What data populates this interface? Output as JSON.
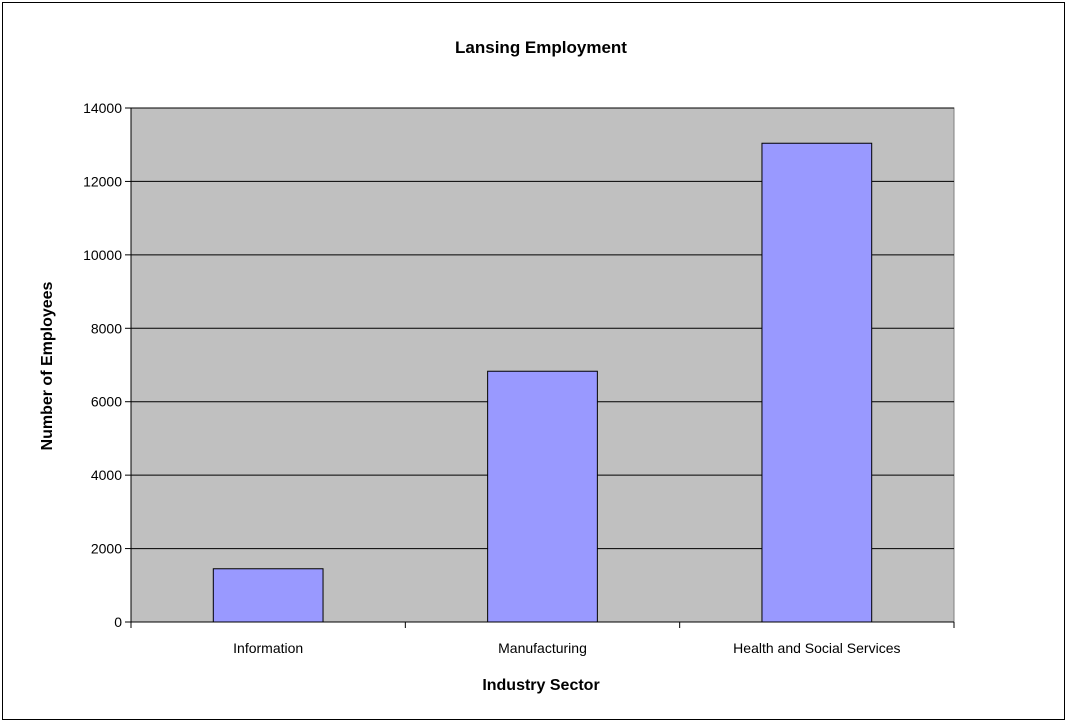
{
  "chart_data": {
    "type": "bar",
    "title": "Lansing Employment",
    "xlabel": "Industry Sector",
    "ylabel": "Number of Employees",
    "categories": [
      "Information",
      "Manufacturing",
      "Health and Social Services"
    ],
    "values": [
      1450,
      6830,
      13040
    ],
    "ylim": [
      0,
      14000
    ],
    "yticks": [
      "0",
      "2000",
      "4000",
      "6000",
      "8000",
      "10000",
      "12000",
      "14000"
    ],
    "grid": true,
    "legend": "none",
    "colors": {
      "bar_fill": "#9999ff",
      "bar_stroke": "#000000",
      "plot_bg": "#c0c0c0",
      "gridline": "#000000"
    }
  }
}
